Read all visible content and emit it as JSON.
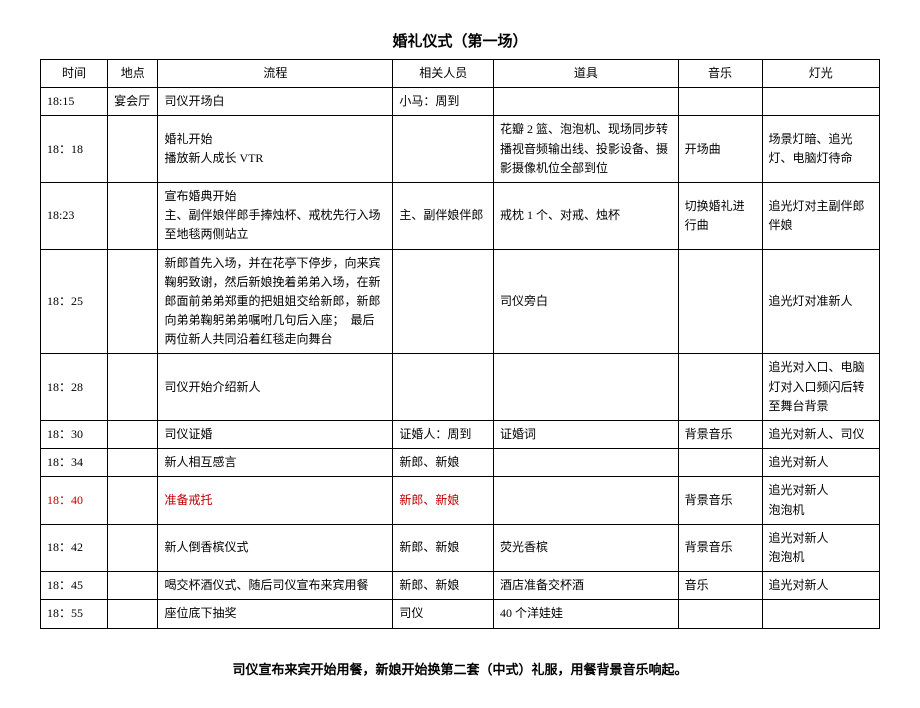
{
  "title": "婚礼仪式（第一场）",
  "columns": [
    "时间",
    "地点",
    "流程",
    "相关人员",
    "道具",
    "音乐",
    "灯光"
  ],
  "rows": [
    {
      "time": "18:15",
      "place": "宴会厅",
      "process": "司仪开场白",
      "people": "小马：周到",
      "props": "",
      "music": "",
      "light": ""
    },
    {
      "time": "18：18",
      "place": "",
      "process": "婚礼开始\n播放新人成长 VTR",
      "people": "",
      "props": "花瓣 2 篮、泡泡机、现场同步转播视音频输出线、投影设备、摄影摄像机位全部到位",
      "music": "开场曲",
      "light": "场景灯暗、追光灯、电脑灯待命"
    },
    {
      "time": "18:23",
      "place": "",
      "process": "宣布婚典开始\n主、副伴娘伴郎手捧烛杯、戒枕先行入场至地毯两侧站立",
      "people": "主、副伴娘伴郎",
      "props": "戒枕 1 个、对戒、烛杯",
      "music": "切换婚礼进行曲",
      "light": "追光灯对主副伴郎伴娘"
    },
    {
      "time": "18：25",
      "place": "",
      "process": "新郎首先入场，并在花亭下停步，向来宾鞠躬致谢，然后新娘挽着弟弟入场，在新郎面前弟弟郑重的把姐姐交给新郎，新郎向弟弟鞠躬弟弟嘱咐几句后入座；　最后两位新人共同沿着红毯走向舞台",
      "people": "",
      "props": "司仪旁白",
      "music": "",
      "light": "追光灯对准新人"
    },
    {
      "time": "18：28",
      "place": "",
      "process": "司仪开始介绍新人",
      "people": "",
      "props": "",
      "music": "",
      "light": "追光对入口、电脑灯对入口频闪后转至舞台背景"
    },
    {
      "time": "18：30",
      "place": "",
      "process": "司仪证婚",
      "people": "证婚人：周到",
      "props": "证婚词",
      "music": "背景音乐",
      "light": "追光对新人、司仪"
    },
    {
      "time": "18：34",
      "place": "",
      "process": "新人相互感言",
      "people": "新郎、新娘",
      "props": "",
      "music": "",
      "light": "追光对新人"
    },
    {
      "time": "18：40",
      "place": "",
      "process": "准备戒托",
      "people": "新郎、新娘",
      "props": "",
      "music": "背景音乐",
      "light": "追光对新人\n泡泡机",
      "red": true
    },
    {
      "time": "18：42",
      "place": "",
      "process": "新人倒香槟仪式",
      "people": "新郎、新娘",
      "props": "荧光香槟",
      "music": "背景音乐",
      "light": "追光对新人\n泡泡机"
    },
    {
      "time": "18：45",
      "place": "",
      "process": "喝交杯酒仪式、随后司仪宣布来宾用餐",
      "people": "新郎、新娘",
      "props": "酒店准备交杯酒",
      "music": "音乐",
      "light": "追光对新人"
    },
    {
      "time": "18：55",
      "place": "",
      "process": "座位底下抽奖",
      "people": "司仪",
      "props": "40 个洋娃娃",
      "music": "",
      "light": ""
    }
  ],
  "footer": "司仪宣布来宾开始用餐，新娘开始换第二套（中式）礼服，用餐背景音乐响起。"
}
